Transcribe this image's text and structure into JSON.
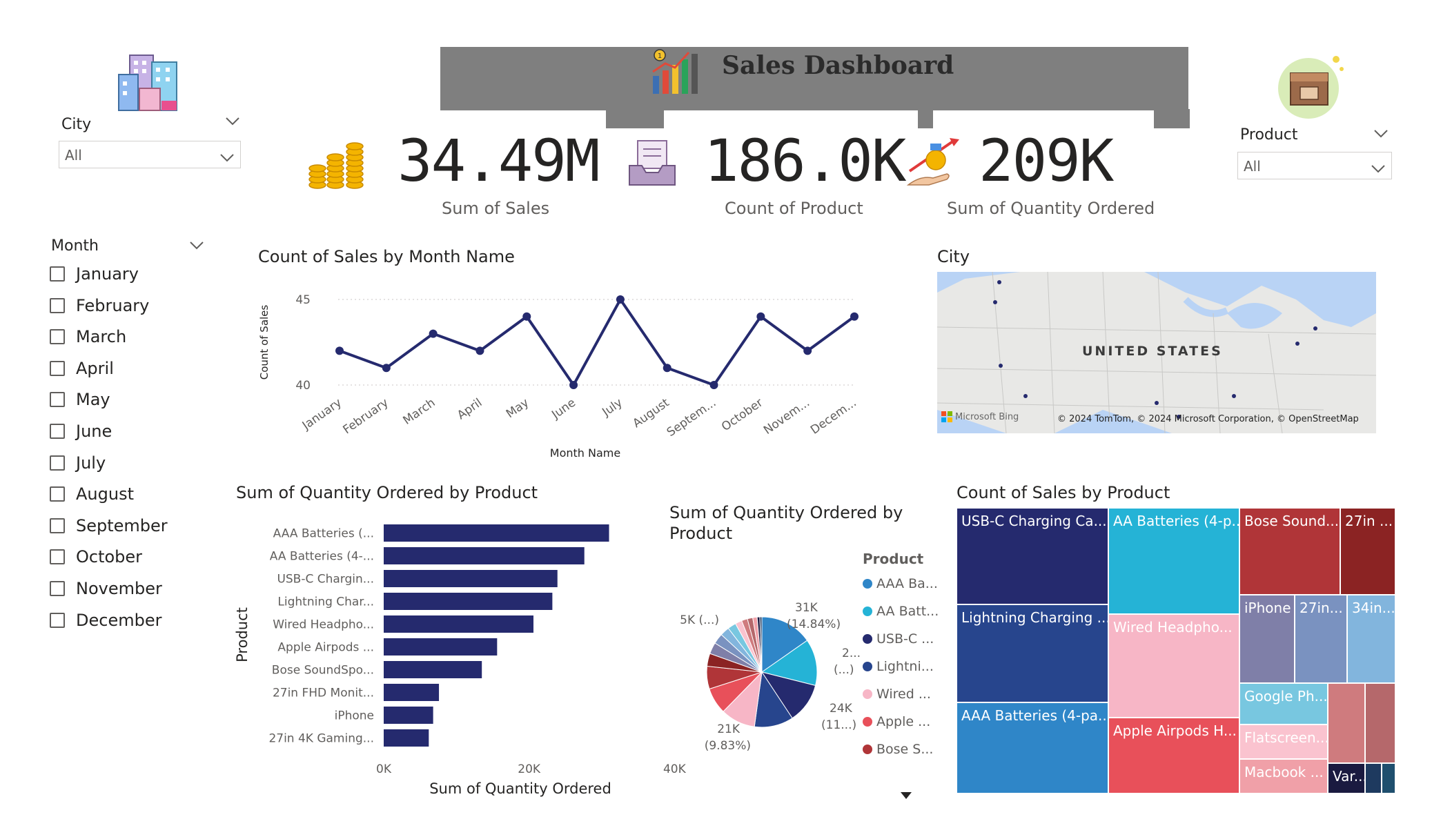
{
  "header": {
    "title": "Sales Dashboard"
  },
  "slicers": {
    "city": {
      "label": "City",
      "value": "All"
    },
    "product": {
      "label": "Product",
      "value": "All"
    },
    "month": {
      "label": "Month",
      "items": [
        "January",
        "February",
        "March",
        "April",
        "May",
        "June",
        "July",
        "August",
        "September",
        "October",
        "November",
        "December"
      ]
    }
  },
  "kpis": [
    {
      "value": "34.49M",
      "label": "Sum of Sales"
    },
    {
      "value": "186.0K",
      "label": "Count of Product"
    },
    {
      "value": "209K",
      "label": "Sum of Quantity Ordered"
    }
  ],
  "map": {
    "title": "City",
    "country_label": "UNITED STATES",
    "bing": "Microsoft Bing",
    "attribution": "© 2024 TomTom, © 2024 Microsoft Corporation, © OpenStreetMap"
  },
  "colors": {
    "navy": "#252a6e",
    "title_bar": "#7f7f7f"
  },
  "chart_data": [
    {
      "type": "line",
      "title": "Count of Sales by Month Name",
      "xlabel": "Month Name",
      "ylabel": "Count of Sales",
      "categories": [
        "January",
        "February",
        "March",
        "April",
        "May",
        "June",
        "July",
        "August",
        "Septem...",
        "October",
        "Novem...",
        "Decem..."
      ],
      "values": [
        42,
        41,
        43,
        42,
        44,
        40,
        45,
        41,
        40,
        44,
        42,
        44
      ],
      "yticks": [
        "40",
        "45"
      ],
      "ylim": [
        40,
        45
      ],
      "grid": true
    },
    {
      "type": "bar",
      "orientation": "horizontal",
      "title": "Sum of Quantity Ordered by Product",
      "xlabel": "Sum of Quantity Ordered",
      "ylabel": "Product",
      "categories": [
        "AAA Batteries (...",
        "AA Batteries (4-...",
        "USB-C Chargin...",
        "Lightning Char...",
        "Wired Headpho...",
        "Apple Airpods ...",
        "Bose SoundSpo...",
        "27in FHD Monit...",
        "iPhone",
        "27in 4K Gaming..."
      ],
      "values": [
        31000,
        27600,
        23900,
        23200,
        20600,
        15600,
        13500,
        7600,
        6800,
        6200
      ],
      "xticks": [
        "0K",
        "20K",
        "40K"
      ],
      "xlim": [
        0,
        40000
      ]
    },
    {
      "type": "pie",
      "title": "Sum of Quantity Ordered by Product",
      "legend_title": "Product",
      "legend": [
        "AAA Ba...",
        "AA Batt...",
        "USB-C ...",
        "Lightni...",
        "Wired ...",
        "Apple ...",
        "Bose S..."
      ],
      "legend_colors": [
        "#2f86c8",
        "#25b3d6",
        "#252a6e",
        "#27458d",
        "#f7b6c6",
        "#e8505a",
        "#b03538"
      ],
      "slices": [
        {
          "value": 31,
          "color": "#2f86c8"
        },
        {
          "value": 27.6,
          "color": "#25b3d6"
        },
        {
          "value": 23.9,
          "color": "#252a6e"
        },
        {
          "value": 23.2,
          "color": "#27458d"
        },
        {
          "value": 20.6,
          "color": "#f7b6c6"
        },
        {
          "value": 15.6,
          "color": "#e8505a"
        },
        {
          "value": 13.5,
          "color": "#b03538"
        },
        {
          "value": 7.6,
          "color": "#8b2323"
        },
        {
          "value": 6.8,
          "color": "#7f7fa8"
        },
        {
          "value": 6.2,
          "color": "#7a92c0"
        },
        {
          "value": 5.5,
          "color": "#82b5dd"
        },
        {
          "value": 5,
          "color": "#78c7e0"
        },
        {
          "value": 4,
          "color": "#fac3cf"
        },
        {
          "value": 3.5,
          "color": "#cf7b7e"
        },
        {
          "value": 3.2,
          "color": "#b5686b"
        },
        {
          "value": 2.6,
          "color": "#f0a0a8"
        },
        {
          "value": 1.6,
          "color": "#1a1a40"
        },
        {
          "value": 1.2,
          "color": "#1e3a5f"
        }
      ],
      "data_labels": [
        {
          "text": "31K",
          "sub": "(14.84%)"
        },
        {
          "text": "2...",
          "sub": "(...)"
        },
        {
          "text": "24K",
          "sub": "(11...)"
        },
        {
          "text": "21K",
          "sub": "(9.83%)"
        },
        {
          "text": "5K (...)",
          "sub": ""
        }
      ]
    },
    {
      "type": "treemap",
      "title": "Count of Sales by Product",
      "cells": [
        {
          "label": "USB-C Charging Ca...",
          "color": "#252a6e"
        },
        {
          "label": "Lightning Charging ...",
          "color": "#27458d"
        },
        {
          "label": "AAA Batteries (4-pa...",
          "color": "#2f86c8"
        },
        {
          "label": "AA Batteries (4-p...",
          "color": "#25b3d6"
        },
        {
          "label": "Wired Headpho...",
          "color": "#f7b6c6"
        },
        {
          "label": "Apple Airpods H...",
          "color": "#e8505a"
        },
        {
          "label": "Bose Sound...",
          "color": "#b03538"
        },
        {
          "label": "27in ...",
          "color": "#8b2323"
        },
        {
          "label": "iPhone",
          "color": "#7f7fa8"
        },
        {
          "label": "27in...",
          "color": "#7a92c0"
        },
        {
          "label": "34in...",
          "color": "#82b5dd"
        },
        {
          "label": "Google Ph...",
          "color": "#78c7e0"
        },
        {
          "label": "Flatscreen...",
          "color": "#fac3cf"
        },
        {
          "label": "",
          "color": "#cf7b7e"
        },
        {
          "label": "",
          "color": "#b5686b"
        },
        {
          "label": "Macbook ...",
          "color": "#f0a0a8"
        },
        {
          "label": "Var...",
          "color": "#1a1a40"
        },
        {
          "label": "",
          "color": "#1e3a5f"
        },
        {
          "label": "",
          "color": "#1f4f6e"
        }
      ]
    }
  ]
}
